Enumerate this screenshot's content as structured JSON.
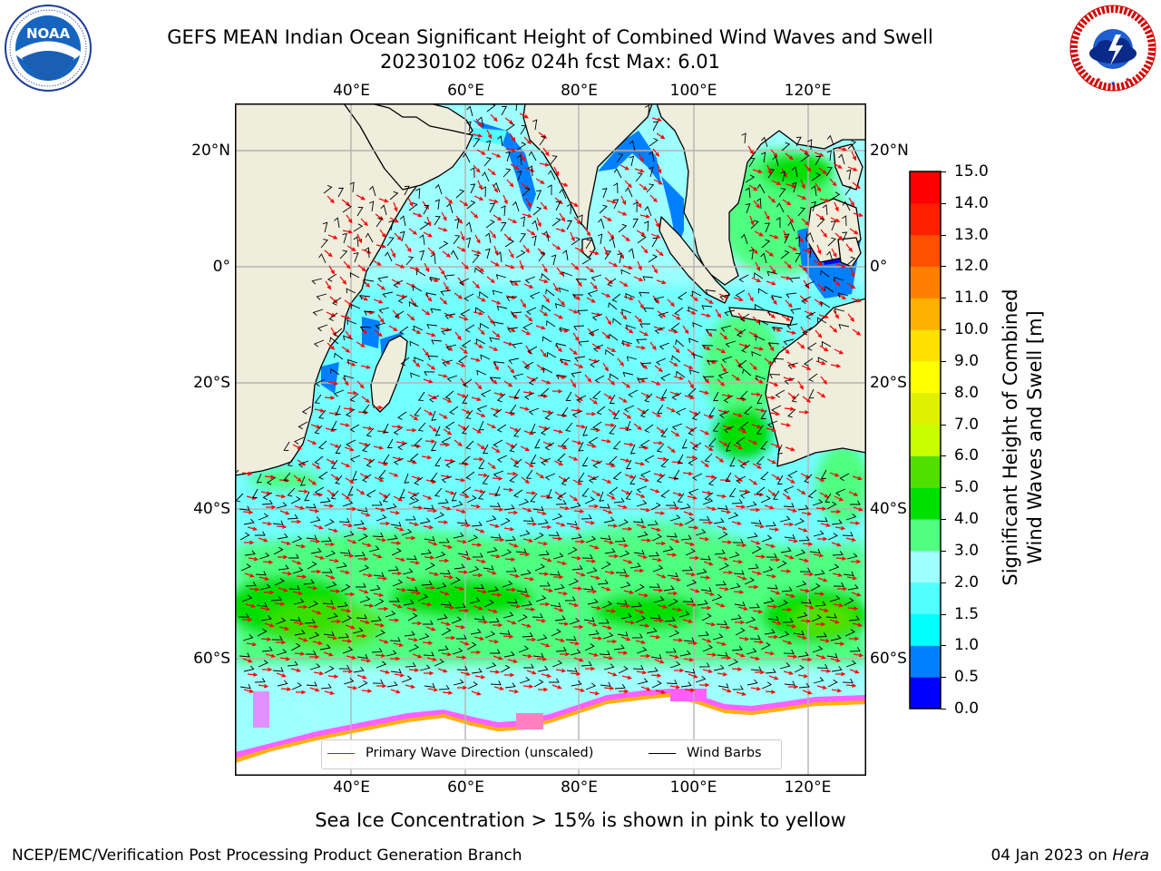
{
  "header": {
    "title_line1": "GEFS MEAN Indian Ocean Significant Height of Combined Wind Waves and Swell",
    "title_line2": "20230102 t06z 024h fcst   Max: 6.01"
  },
  "logos": {
    "left": {
      "icon": "noaa-logo",
      "text": "NOAA",
      "ring_text": "NATIONAL OCEANIC AND ATMOSPHERIC ADMINISTRATION · U.S. DEPARTMENT OF COMMERCE"
    },
    "right": {
      "icon": "nws-logo",
      "ring_text": "NATIONAL WEATHER SERVICE"
    }
  },
  "map": {
    "lon_labels": [
      "40°E",
      "60°E",
      "80°E",
      "100°E",
      "120°E"
    ],
    "lat_labels": [
      "20°N",
      "0°",
      "20°S",
      "40°S",
      "60°S"
    ],
    "colors": {
      "land": "#efeddc",
      "ocean_base": "#9dffff",
      "arrow": "#ff0000",
      "barb": "#000000"
    }
  },
  "colorbar": {
    "label": "Significant Height of Combined Wind Waves and Swell [m]",
    "label_line1": "Significant Height of Combined",
    "label_line2": "Wind Waves and Swell [m]",
    "ticks": [
      "0.0",
      "0.5",
      "1.0",
      "1.5",
      "2.0",
      "3.0",
      "4.0",
      "5.0",
      "6.0",
      "7.0",
      "8.0",
      "9.0",
      "10.0",
      "11.0",
      "12.0",
      "13.0",
      "14.0",
      "15.0"
    ],
    "colors": [
      "#0000ff",
      "#0080ff",
      "#00ffff",
      "#50ffff",
      "#a0ffff",
      "#50ff80",
      "#00e000",
      "#50e000",
      "#c8ff00",
      "#e0f000",
      "#ffff00",
      "#ffe000",
      "#ffb000",
      "#ff8000",
      "#ff5000",
      "#ff2000",
      "#ff0000"
    ]
  },
  "legend": {
    "wave_label": "Primary Wave Direction (unscaled)",
    "wave_color": "#ff0000",
    "barb_label": "Wind Barbs",
    "barb_color": "#000000"
  },
  "note": "Sea Ice Concentration > 15% is shown in pink to yellow",
  "footer": {
    "left": "NCEP/EMC/Verification Post Processing Product Generation Branch",
    "date": "04 Jan 2023 on ",
    "host": "Hera"
  }
}
